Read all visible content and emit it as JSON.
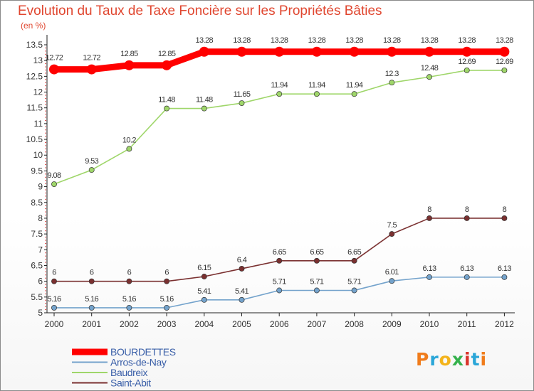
{
  "chart_data": {
    "type": "line",
    "title": "Evolution du Taux de Taxe Foncière sur les Propriétés Bâties",
    "unit_label": "(en %)",
    "xlabel": "",
    "ylabel": "",
    "x": [
      "2000",
      "2001",
      "2002",
      "2003",
      "2004",
      "2005",
      "2006",
      "2007",
      "2008",
      "2009",
      "2010",
      "2011",
      "2012"
    ],
    "ylim": [
      5,
      13.5
    ],
    "yticks": [
      "5",
      "5.5",
      "6",
      "6.5",
      "7",
      "7.5",
      "8",
      "8.5",
      "9",
      "9.5",
      "10",
      "10.5",
      "11",
      "11.5",
      "12",
      "12.5",
      "13",
      "13.5"
    ],
    "grid": false,
    "legend_position": "bottom-left",
    "series": [
      {
        "name": "BOURDETTES",
        "color": "#ff0000",
        "values": [
          12.72,
          12.72,
          12.85,
          12.85,
          13.28,
          13.28,
          13.28,
          13.28,
          13.28,
          13.28,
          13.28,
          13.28,
          13.28
        ],
        "labels": [
          "12.72",
          "12.72",
          "12.85",
          "12.85",
          "13.28",
          "13.28",
          "13.28",
          "13.28",
          "13.28",
          "13.28",
          "13.28",
          "13.28",
          "13.28"
        ]
      },
      {
        "name": "Arros-de-Nay",
        "color": "#74a3cc",
        "values": [
          5.16,
          5.16,
          5.16,
          5.16,
          5.41,
          5.41,
          5.71,
          5.71,
          5.71,
          6.01,
          6.13,
          6.13,
          6.13
        ],
        "labels": [
          "5.16",
          "5.16",
          "5.16",
          "5.16",
          "5.41",
          "5.41",
          "5.71",
          "5.71",
          "5.71",
          "6.01",
          "6.13",
          "6.13",
          "6.13"
        ]
      },
      {
        "name": "Baudreix",
        "color": "#9fd66a",
        "values": [
          9.08,
          9.53,
          10.2,
          11.48,
          11.48,
          11.65,
          11.94,
          11.94,
          11.94,
          12.3,
          12.48,
          12.69,
          12.69
        ],
        "labels": [
          "9.08",
          "9.53",
          "10.2",
          "11.48",
          "11.48",
          "11.65",
          "11.94",
          "11.94",
          "11.94",
          "12.3",
          "12.48",
          "12.69",
          "12.69"
        ]
      },
      {
        "name": "Saint-Abit",
        "color": "#7a3030",
        "values": [
          6,
          6,
          6,
          6,
          6.15,
          6.4,
          6.65,
          6.65,
          6.65,
          7.5,
          8,
          8,
          8
        ],
        "labels": [
          "6",
          "6",
          "6",
          "6",
          "6.15",
          "6.4",
          "6.65",
          "6.65",
          "6.65",
          "7.5",
          "8",
          "8",
          "8"
        ]
      }
    ]
  },
  "logo": {
    "text": "Proxiti",
    "colors": [
      "#f07c1c",
      "#2aa6d8",
      "#f3b31a",
      "#35b14c",
      "#d9342b",
      "#2aa6d8",
      "#f07c1c"
    ]
  }
}
